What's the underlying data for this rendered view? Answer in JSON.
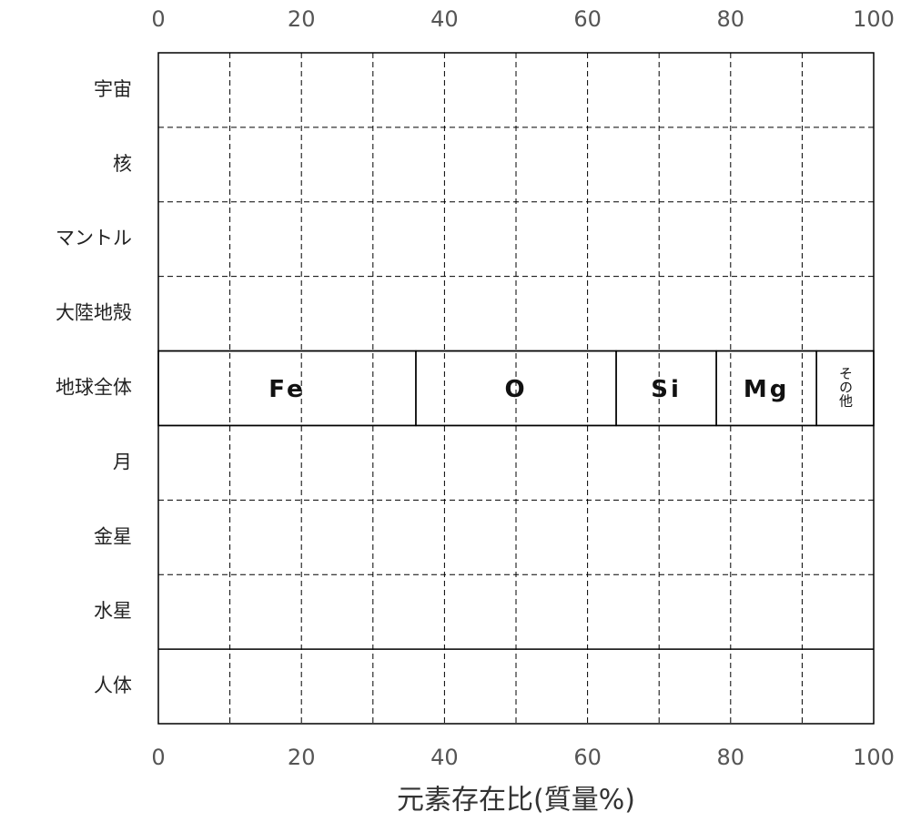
{
  "chart_data": {
    "type": "stacked-barh",
    "xlabel": "元素存在比(質量%)",
    "categories": [
      "宇宙",
      "核",
      "マントル",
      "大陸地殻",
      "地球全体",
      "月",
      "金星",
      "水星",
      "人体"
    ],
    "series": [
      {
        "name": "Fe",
        "values": [
          null,
          null,
          null,
          null,
          36,
          null,
          null,
          null,
          null
        ]
      },
      {
        "name": "O",
        "values": [
          null,
          null,
          null,
          null,
          28,
          null,
          null,
          null,
          null
        ]
      },
      {
        "name": "Si",
        "values": [
          null,
          null,
          null,
          null,
          14,
          null,
          null,
          null,
          null
        ]
      },
      {
        "name": "Mg",
        "values": [
          null,
          null,
          null,
          null,
          14,
          null,
          null,
          null,
          null
        ]
      },
      {
        "name": "その他",
        "values": [
          null,
          null,
          null,
          null,
          8,
          null,
          null,
          null,
          null
        ]
      }
    ],
    "xlim": [
      0,
      100
    ],
    "xticks": [
      0,
      20,
      40,
      60,
      80,
      100
    ],
    "xminor": [
      10,
      30,
      50,
      70,
      90
    ],
    "grid": true
  }
}
